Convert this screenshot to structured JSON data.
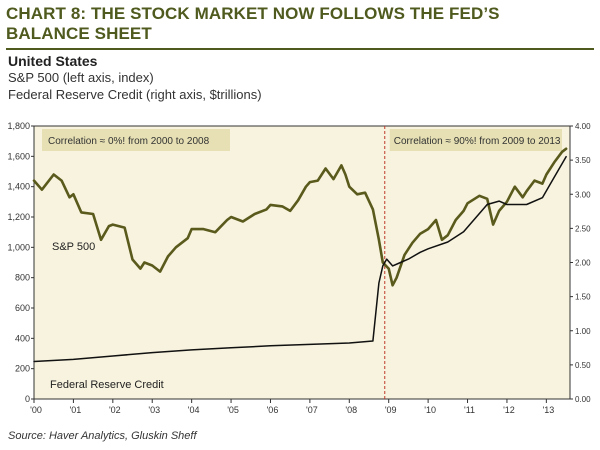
{
  "header": {
    "title": "CHART 8: THE STOCK MARKET NOW FOLLOWS THE FED’S BALANCE SHEET",
    "region": "United States",
    "series1_desc": "S&P 500 (left axis, index)",
    "series2_desc": "Federal Reserve Credit (right axis, $trillions)"
  },
  "footer": {
    "source": "Source: Haver Analytics, Gluskin Sheff"
  },
  "chart_data": {
    "type": "line",
    "title": "CHART 8: THE STOCK MARKET NOW FOLLOWS THE FED’S BALANCE SHEET",
    "x_ticks": [
      "'00",
      "'01",
      "'02",
      "'03",
      "'04",
      "'05",
      "'06",
      "'07",
      "'08",
      "'09",
      "'10",
      "'11",
      "'12",
      "'13"
    ],
    "x_range": [
      2000,
      2013.6
    ],
    "y_left": {
      "label": "S&P 500 (left axis, index)",
      "range": [
        0,
        1800
      ],
      "ticks": [
        "0",
        "200",
        "400",
        "600",
        "800",
        "1,000",
        "1,200",
        "1,400",
        "1,600",
        "1,800"
      ]
    },
    "y_right": {
      "label": "Federal Reserve Credit (right axis, $trillions)",
      "range": [
        0,
        4
      ],
      "ticks": [
        "0.00",
        "0.50",
        "1.00",
        "1.50",
        "2.00",
        "2.50",
        "3.00",
        "3.50",
        "4.00"
      ]
    },
    "grid": false,
    "divider_x": 2008.9,
    "annotations": [
      {
        "text": "Correlation ≈ 0%! from 2000 to 2008"
      },
      {
        "text": "Correlation ≈ 90%! from 2009 to 2013"
      }
    ],
    "series_labels": {
      "sp500": "S&P 500",
      "fed": "Federal Reserve Credit"
    },
    "series": [
      {
        "name": "S&P 500",
        "axis": "left",
        "color": "#5a5a1c",
        "x": [
          2000,
          2000.2,
          2000.5,
          2000.7,
          2000.9,
          2001.0,
          2001.2,
          2001.5,
          2001.7,
          2001.9,
          2002.0,
          2002.3,
          2002.5,
          2002.7,
          2002.8,
          2003.0,
          2003.2,
          2003.4,
          2003.6,
          2003.9,
          2004.0,
          2004.3,
          2004.6,
          2004.9,
          2005.0,
          2005.3,
          2005.6,
          2005.9,
          2006.0,
          2006.3,
          2006.5,
          2006.7,
          2006.9,
          2007.0,
          2007.2,
          2007.4,
          2007.6,
          2007.8,
          2007.9,
          2008.0,
          2008.2,
          2008.4,
          2008.6,
          2008.75,
          2008.85,
          2009.0,
          2009.1,
          2009.2,
          2009.4,
          2009.6,
          2009.8,
          2010.0,
          2010.2,
          2010.35,
          2010.5,
          2010.7,
          2010.9,
          2011.0,
          2011.3,
          2011.5,
          2011.65,
          2011.8,
          2012.0,
          2012.2,
          2012.4,
          2012.5,
          2012.7,
          2012.9,
          2013.0,
          2013.2,
          2013.4,
          2013.5
        ],
        "values": [
          1440,
          1380,
          1480,
          1440,
          1330,
          1350,
          1230,
          1220,
          1050,
          1140,
          1150,
          1130,
          920,
          860,
          900,
          880,
          840,
          940,
          1000,
          1060,
          1120,
          1120,
          1100,
          1180,
          1200,
          1170,
          1220,
          1250,
          1280,
          1270,
          1240,
          1310,
          1400,
          1430,
          1440,
          1520,
          1450,
          1540,
          1480,
          1400,
          1350,
          1360,
          1250,
          1050,
          900,
          860,
          750,
          800,
          950,
          1030,
          1090,
          1120,
          1180,
          1050,
          1080,
          1180,
          1240,
          1290,
          1340,
          1320,
          1150,
          1240,
          1300,
          1400,
          1330,
          1370,
          1440,
          1420,
          1480,
          1560,
          1630,
          1650
        ]
      },
      {
        "name": "Federal Reserve Credit",
        "axis": "right",
        "color": "#111111",
        "x": [
          2000,
          2001,
          2002,
          2003,
          2004,
          2005,
          2006,
          2007,
          2008.0,
          2008.6,
          2008.75,
          2008.85,
          2008.95,
          2009.1,
          2009.3,
          2009.5,
          2009.8,
          2010.0,
          2010.5,
          2010.9,
          2011.2,
          2011.5,
          2011.8,
          2012.0,
          2012.5,
          2012.9,
          2013.1,
          2013.3,
          2013.5
        ],
        "values": [
          0.55,
          0.58,
          0.63,
          0.68,
          0.72,
          0.75,
          0.78,
          0.8,
          0.82,
          0.85,
          1.7,
          1.95,
          2.05,
          1.95,
          2.0,
          2.05,
          2.15,
          2.2,
          2.3,
          2.45,
          2.65,
          2.85,
          2.9,
          2.85,
          2.85,
          2.95,
          3.15,
          3.35,
          3.55
        ]
      }
    ]
  }
}
